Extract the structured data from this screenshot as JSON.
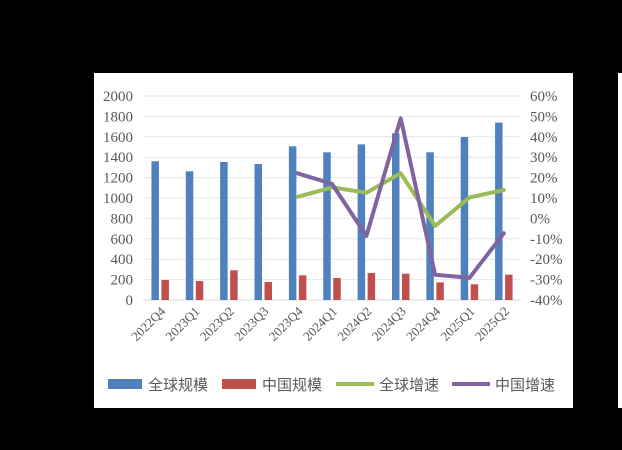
{
  "chart_data": {
    "type": "bar",
    "title": "",
    "xlabel": "",
    "ylabel": "",
    "categories": [
      "2022Q4",
      "2023Q1",
      "2023Q2",
      "2023Q3",
      "2023Q4",
      "2024Q1",
      "2024Q2",
      "2024Q3",
      "2024Q4",
      "2025Q1",
      "2025Q2"
    ],
    "series": [
      {
        "name": "全球规模",
        "type": "bar",
        "axis": "left",
        "color": "#4f81bd",
        "values": [
          1360,
          1262,
          1353,
          1333,
          1507,
          1448,
          1526,
          1634,
          1448,
          1598,
          1739
        ]
      },
      {
        "name": "中国规模",
        "type": "bar",
        "axis": "left",
        "color": "#c0504d",
        "values": [
          196,
          186,
          291,
          176,
          242,
          216,
          265,
          258,
          173,
          154,
          248
        ]
      },
      {
        "name": "全球增速",
        "type": "line",
        "axis": "right",
        "color": "#9bbb59",
        "values": [
          null,
          null,
          null,
          null,
          10.6,
          15.2,
          12.6,
          22.1,
          -3.7,
          10.3,
          13.9
        ]
      },
      {
        "name": "中国增速",
        "type": "line",
        "axis": "right",
        "color": "#8064a2",
        "values": [
          null,
          null,
          null,
          null,
          22.1,
          16.9,
          -8.6,
          49.0,
          -27.6,
          -29.1,
          -7.3
        ]
      }
    ],
    "ylim": [
      0,
      2000
    ],
    "y_ticks": [
      "0",
      "200",
      "400",
      "600",
      "800",
      "1000",
      "1200",
      "1400",
      "1600",
      "1800",
      "2000"
    ],
    "y2lim": [
      -40,
      60
    ],
    "y2_ticks": [
      "-40%",
      "-30%",
      "-20%",
      "-10%",
      "0%",
      "10%",
      "20%",
      "30%",
      "40%",
      "50%",
      "60%"
    ],
    "grid": true,
    "legend_position": "bottom"
  }
}
